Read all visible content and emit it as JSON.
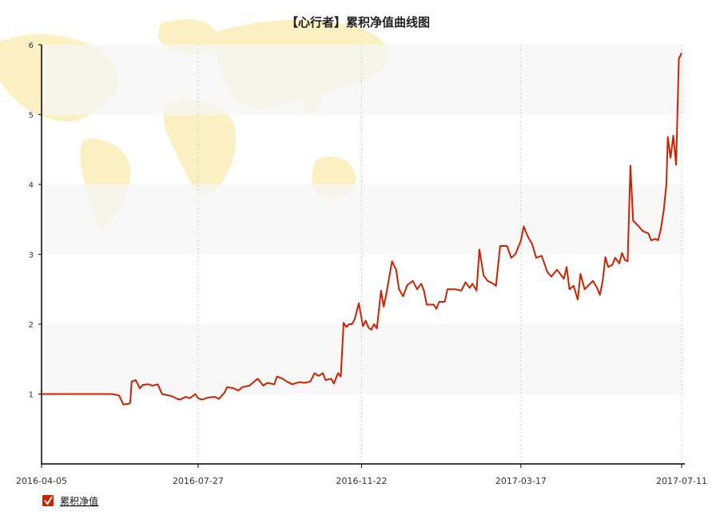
{
  "chart_data": {
    "type": "line",
    "title": "【心行者】累积净值曲线图",
    "ylim": [
      0,
      6
    ],
    "yticks": [
      1,
      2,
      3,
      4,
      5,
      6
    ],
    "xticks": [
      "2016-04-05",
      "2016-07-27",
      "2016-11-22",
      "2017-03-17",
      "2017-07-11"
    ],
    "grid": {
      "horizontal_bands": true,
      "vertical_dotted": true
    },
    "legend_position": "bottom-left",
    "colors": {
      "line": "#cc2200",
      "band": "#f5f5f5",
      "legend_check": "#cc2200",
      "map": "#fbeeb8"
    },
    "series": [
      {
        "name": "累积净值",
        "points": [
          [
            "2016-04-05",
            1.0
          ],
          [
            "2016-05-01",
            1.0
          ],
          [
            "2016-05-26",
            1.0
          ],
          [
            "2016-05-31",
            0.98
          ],
          [
            "2016-06-03",
            0.85
          ],
          [
            "2016-06-07",
            0.86
          ],
          [
            "2016-06-08",
            0.88
          ],
          [
            "2016-06-09",
            1.18
          ],
          [
            "2016-06-12",
            1.2
          ],
          [
            "2016-06-15",
            1.08
          ],
          [
            "2016-06-17",
            1.13
          ],
          [
            "2016-06-21",
            1.14
          ],
          [
            "2016-06-24",
            1.12
          ],
          [
            "2016-06-28",
            1.14
          ],
          [
            "2016-07-01",
            1.0
          ],
          [
            "2016-07-08",
            0.97
          ],
          [
            "2016-07-12",
            0.93
          ],
          [
            "2016-07-14",
            0.92
          ],
          [
            "2016-07-18",
            0.96
          ],
          [
            "2016-07-21",
            0.94
          ],
          [
            "2016-07-25",
            1.0
          ],
          [
            "2016-07-27",
            0.94
          ],
          [
            "2016-07-30",
            0.92
          ],
          [
            "2016-08-03",
            0.95
          ],
          [
            "2016-08-08",
            0.96
          ],
          [
            "2016-08-11",
            0.93
          ],
          [
            "2016-08-15",
            1.02
          ],
          [
            "2016-08-17",
            1.1
          ],
          [
            "2016-08-22",
            1.08
          ],
          [
            "2016-08-25",
            1.05
          ],
          [
            "2016-08-28",
            1.1
          ],
          [
            "2016-09-02",
            1.12
          ],
          [
            "2016-09-05",
            1.17
          ],
          [
            "2016-09-08",
            1.22
          ],
          [
            "2016-09-12",
            1.12
          ],
          [
            "2016-09-15",
            1.16
          ],
          [
            "2016-09-20",
            1.14
          ],
          [
            "2016-09-22",
            1.25
          ],
          [
            "2016-09-26",
            1.22
          ],
          [
            "2016-09-29",
            1.18
          ],
          [
            "2016-10-03",
            1.14
          ],
          [
            "2016-10-08",
            1.17
          ],
          [
            "2016-10-12",
            1.16
          ],
          [
            "2016-10-16",
            1.18
          ],
          [
            "2016-10-19",
            1.3
          ],
          [
            "2016-10-22",
            1.26
          ],
          [
            "2016-10-25",
            1.3
          ],
          [
            "2016-10-27",
            1.2
          ],
          [
            "2016-10-31",
            1.22
          ],
          [
            "2016-11-02",
            1.15
          ],
          [
            "2016-11-05",
            1.3
          ],
          [
            "2016-11-07",
            1.25
          ],
          [
            "2016-11-09",
            2.02
          ],
          [
            "2016-11-11",
            1.96
          ],
          [
            "2016-11-13",
            2.0
          ],
          [
            "2016-11-15",
            2.0
          ],
          [
            "2016-11-17",
            2.07
          ],
          [
            "2016-11-20",
            2.3
          ],
          [
            "2016-11-23",
            1.97
          ],
          [
            "2016-11-25",
            2.05
          ],
          [
            "2016-11-27",
            1.95
          ],
          [
            "2016-11-29",
            1.92
          ],
          [
            "2016-12-01",
            2.0
          ],
          [
            "2016-12-03",
            1.94
          ],
          [
            "2016-12-06",
            2.48
          ],
          [
            "2016-12-08",
            2.25
          ],
          [
            "2016-12-10",
            2.45
          ],
          [
            "2016-12-14",
            2.9
          ],
          [
            "2016-12-17",
            2.78
          ],
          [
            "2016-12-19",
            2.5
          ],
          [
            "2016-12-22",
            2.4
          ],
          [
            "2016-12-25",
            2.56
          ],
          [
            "2016-12-29",
            2.62
          ],
          [
            "2017-01-01",
            2.5
          ],
          [
            "2017-01-04",
            2.58
          ],
          [
            "2017-01-06",
            2.48
          ],
          [
            "2017-01-08",
            2.28
          ],
          [
            "2017-01-13",
            2.28
          ],
          [
            "2017-01-15",
            2.22
          ],
          [
            "2017-01-17",
            2.32
          ],
          [
            "2017-01-21",
            2.32
          ],
          [
            "2017-01-23",
            2.5
          ],
          [
            "2017-01-29",
            2.5
          ],
          [
            "2017-02-02",
            2.48
          ],
          [
            "2017-02-05",
            2.6
          ],
          [
            "2017-02-08",
            2.52
          ],
          [
            "2017-02-10",
            2.58
          ],
          [
            "2017-02-13",
            2.48
          ],
          [
            "2017-02-15",
            3.07
          ],
          [
            "2017-02-18",
            2.7
          ],
          [
            "2017-02-21",
            2.62
          ],
          [
            "2017-02-25",
            2.58
          ],
          [
            "2017-02-27",
            2.55
          ],
          [
            "2017-03-02",
            3.12
          ],
          [
            "2017-03-07",
            3.12
          ],
          [
            "2017-03-10",
            2.95
          ],
          [
            "2017-03-13",
            3.0
          ],
          [
            "2017-03-17",
            3.2
          ],
          [
            "2017-03-19",
            3.4
          ],
          [
            "2017-03-22",
            3.25
          ],
          [
            "2017-03-25",
            3.15
          ],
          [
            "2017-03-28",
            2.95
          ],
          [
            "2017-04-01",
            2.98
          ],
          [
            "2017-04-05",
            2.75
          ],
          [
            "2017-04-08",
            2.68
          ],
          [
            "2017-04-12",
            2.78
          ],
          [
            "2017-04-17",
            2.65
          ],
          [
            "2017-04-19",
            2.82
          ],
          [
            "2017-04-21",
            2.5
          ],
          [
            "2017-04-24",
            2.55
          ],
          [
            "2017-04-27",
            2.35
          ],
          [
            "2017-04-29",
            2.72
          ],
          [
            "2017-05-02",
            2.5
          ],
          [
            "2017-05-05",
            2.56
          ],
          [
            "2017-05-08",
            2.62
          ],
          [
            "2017-05-11",
            2.52
          ],
          [
            "2017-05-13",
            2.42
          ],
          [
            "2017-05-15",
            2.62
          ],
          [
            "2017-05-17",
            2.96
          ],
          [
            "2017-05-19",
            2.82
          ],
          [
            "2017-05-22",
            2.85
          ],
          [
            "2017-05-24",
            2.95
          ],
          [
            "2017-05-27",
            2.87
          ],
          [
            "2017-05-29",
            3.02
          ],
          [
            "2017-05-31",
            2.92
          ],
          [
            "2017-06-02",
            2.9
          ],
          [
            "2017-06-04",
            4.27
          ],
          [
            "2017-06-06",
            3.48
          ],
          [
            "2017-06-10",
            3.4
          ],
          [
            "2017-06-13",
            3.33
          ],
          [
            "2017-06-17",
            3.3
          ],
          [
            "2017-06-19",
            3.2
          ],
          [
            "2017-06-22",
            3.22
          ],
          [
            "2017-06-24",
            3.2
          ],
          [
            "2017-06-26",
            3.36
          ],
          [
            "2017-06-28",
            3.62
          ],
          [
            "2017-06-30",
            4.0
          ],
          [
            "2017-07-01",
            4.68
          ],
          [
            "2017-07-03",
            4.38
          ],
          [
            "2017-07-05",
            4.7
          ],
          [
            "2017-07-07",
            4.28
          ],
          [
            "2017-07-09",
            5.8
          ],
          [
            "2017-07-11",
            5.88
          ]
        ]
      }
    ]
  }
}
